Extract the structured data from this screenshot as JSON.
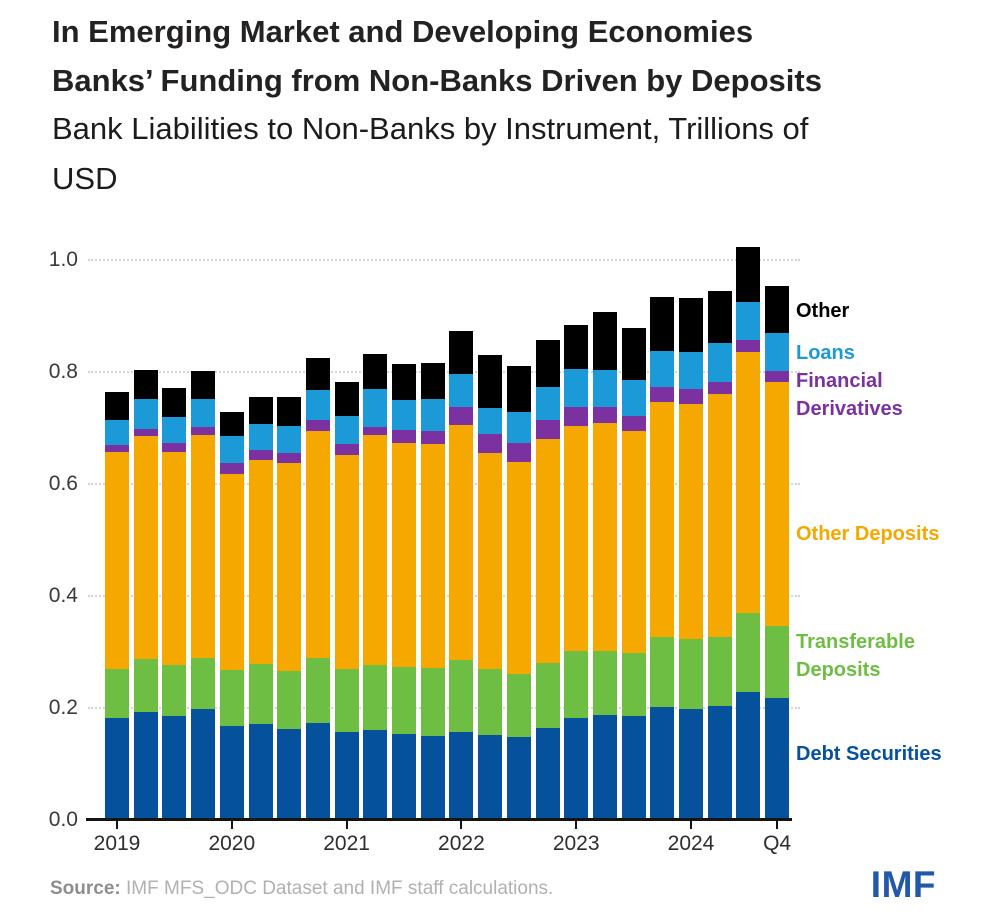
{
  "header": {
    "title_lines": [
      "In Emerging Market and Developing Economies",
      "Banks’ Funding from Non-Banks Driven by Deposits"
    ],
    "subtitle_lines": [
      "Bank Liabilities to Non-Banks by Instrument, Trillions of",
      "USD"
    ]
  },
  "chart_data": {
    "type": "bar",
    "stacked": true,
    "title": "Bank Liabilities to Non-Banks by Instrument",
    "ylabel": "Trillions of USD",
    "xlabel": "",
    "ylim": [
      0,
      1.05
    ],
    "grid": "dotted horizontal",
    "legend_position": "right",
    "categories": [
      "2019Q1",
      "2019Q2",
      "2019Q3",
      "2019Q4",
      "2020Q1",
      "2020Q2",
      "2020Q3",
      "2020Q4",
      "2021Q1",
      "2021Q2",
      "2021Q3",
      "2021Q4",
      "2022Q1",
      "2022Q2",
      "2022Q3",
      "2022Q4",
      "2023Q1",
      "2023Q2",
      "2023Q3",
      "2023Q4",
      "2024Q1",
      "2024Q2",
      "2024Q3",
      "2024Q4"
    ],
    "series": [
      {
        "name": "Debt Securities",
        "color": "#05519C",
        "values": [
          0.183,
          0.192,
          0.186,
          0.199,
          0.168,
          0.171,
          0.162,
          0.173,
          0.158,
          0.161,
          0.154,
          0.15,
          0.158,
          0.152,
          0.148,
          0.165,
          0.183,
          0.188,
          0.186,
          0.202,
          0.198,
          0.204,
          0.229,
          0.217
        ]
      },
      {
        "name": "Transferable Deposits",
        "color": "#6FBE44",
        "values": [
          0.086,
          0.096,
          0.09,
          0.091,
          0.099,
          0.107,
          0.104,
          0.116,
          0.111,
          0.116,
          0.12,
          0.121,
          0.128,
          0.118,
          0.113,
          0.116,
          0.118,
          0.114,
          0.112,
          0.125,
          0.125,
          0.123,
          0.141,
          0.129
        ]
      },
      {
        "name": "Other Deposits",
        "color": "#F4A800",
        "values": [
          0.388,
          0.397,
          0.381,
          0.398,
          0.35,
          0.365,
          0.371,
          0.406,
          0.383,
          0.411,
          0.4,
          0.4,
          0.42,
          0.385,
          0.378,
          0.399,
          0.403,
          0.407,
          0.396,
          0.42,
          0.419,
          0.433,
          0.466,
          0.437
        ]
      },
      {
        "name": "Financial Derivatives",
        "color": "#7B32A0",
        "values": [
          0.012,
          0.013,
          0.016,
          0.014,
          0.02,
          0.018,
          0.018,
          0.019,
          0.019,
          0.013,
          0.022,
          0.023,
          0.032,
          0.034,
          0.034,
          0.034,
          0.034,
          0.029,
          0.027,
          0.027,
          0.028,
          0.023,
          0.021,
          0.019
        ]
      },
      {
        "name": "Loans",
        "color": "#1B9AD7",
        "values": [
          0.045,
          0.054,
          0.047,
          0.05,
          0.048,
          0.046,
          0.049,
          0.054,
          0.051,
          0.069,
          0.054,
          0.058,
          0.058,
          0.047,
          0.055,
          0.06,
          0.068,
          0.065,
          0.065,
          0.064,
          0.065,
          0.068,
          0.068,
          0.068
        ]
      },
      {
        "name": "Other",
        "color": "#000000",
        "values": [
          0.051,
          0.051,
          0.052,
          0.05,
          0.043,
          0.049,
          0.051,
          0.057,
          0.061,
          0.062,
          0.065,
          0.065,
          0.077,
          0.095,
          0.083,
          0.083,
          0.078,
          0.104,
          0.093,
          0.096,
          0.098,
          0.093,
          0.099,
          0.084
        ]
      }
    ],
    "yaxis": {
      "tick_labels": [
        "0.0",
        "0.2",
        "0.4",
        "0.6",
        "0.8",
        "1.0"
      ],
      "tick_values": [
        0,
        0.2,
        0.4,
        0.6,
        0.8,
        1.0
      ]
    },
    "xaxis": {
      "ticks": [
        {
          "label": "2019",
          "index": 0
        },
        {
          "label": "2020",
          "index": 4
        },
        {
          "label": "2021",
          "index": 8
        },
        {
          "label": "2022",
          "index": 12
        },
        {
          "label": "2023",
          "index": 16
        },
        {
          "label": "2024",
          "index": 20
        },
        {
          "label": "Q4",
          "index": 23
        }
      ]
    }
  },
  "legend": {
    "items": [
      {
        "label": "Other",
        "color": "#000000"
      },
      {
        "label": "Loans",
        "color": "#1B9AD7"
      },
      {
        "label": "Financial\nDerivatives",
        "color": "#7B32A0"
      },
      {
        "label": "Other Deposits",
        "color": "#F4A800"
      },
      {
        "label": "Transferable\nDeposits",
        "color": "#6FBE44"
      },
      {
        "label": "Debt Securities",
        "color": "#05519C"
      }
    ]
  },
  "footer": {
    "source_label": "Source:",
    "source_text": " IMF MFS_ODC Dataset and IMF staff calculations.",
    "logo_text": "IMF"
  },
  "colors": {
    "background": "#ffffff",
    "axis": "#141414",
    "gridline": "#d4d4d4",
    "title": "#232122",
    "subtitle": "#1c1c1c",
    "axis_labels": "#3a3a3a",
    "source_label": "#8f8d8e",
    "source_text": "#b2b0b1",
    "logo_blue": "#2158a8"
  }
}
